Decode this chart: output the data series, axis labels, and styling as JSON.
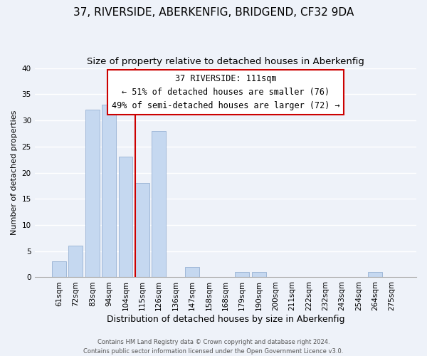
{
  "title": "37, RIVERSIDE, ABERKENFIG, BRIDGEND, CF32 9DA",
  "subtitle": "Size of property relative to detached houses in Aberkenfig",
  "xlabel": "Distribution of detached houses by size in Aberkenfig",
  "ylabel": "Number of detached properties",
  "footer_line1": "Contains HM Land Registry data © Crown copyright and database right 2024.",
  "footer_line2": "Contains public sector information licensed under the Open Government Licence v3.0.",
  "bar_labels": [
    "61sqm",
    "72sqm",
    "83sqm",
    "94sqm",
    "104sqm",
    "115sqm",
    "126sqm",
    "136sqm",
    "147sqm",
    "158sqm",
    "168sqm",
    "179sqm",
    "190sqm",
    "200sqm",
    "211sqm",
    "222sqm",
    "232sqm",
    "243sqm",
    "254sqm",
    "264sqm",
    "275sqm"
  ],
  "bar_values": [
    3,
    6,
    32,
    33,
    23,
    18,
    28,
    0,
    2,
    0,
    0,
    1,
    1,
    0,
    0,
    0,
    0,
    0,
    0,
    1,
    0
  ],
  "bar_color": "#c5d8f0",
  "bar_edgecolor": "#a0b8d8",
  "property_line_index": 5,
  "property_line_color": "#cc0000",
  "annotation_line1": "37 RIVERSIDE: 111sqm",
  "annotation_line2": "← 51% of detached houses are smaller (76)",
  "annotation_line3": "49% of semi-detached houses are larger (72) →",
  "annotation_box_edgecolor": "#cc0000",
  "annotation_box_facecolor": "#ffffff",
  "ylim": [
    0,
    40
  ],
  "yticks": [
    0,
    5,
    10,
    15,
    20,
    25,
    30,
    35,
    40
  ],
  "background_color": "#eef2f9",
  "grid_color": "#ffffff",
  "title_fontsize": 11,
  "subtitle_fontsize": 9.5,
  "xlabel_fontsize": 9,
  "ylabel_fontsize": 8,
  "tick_fontsize": 7.5,
  "annotation_fontsize": 8.5
}
